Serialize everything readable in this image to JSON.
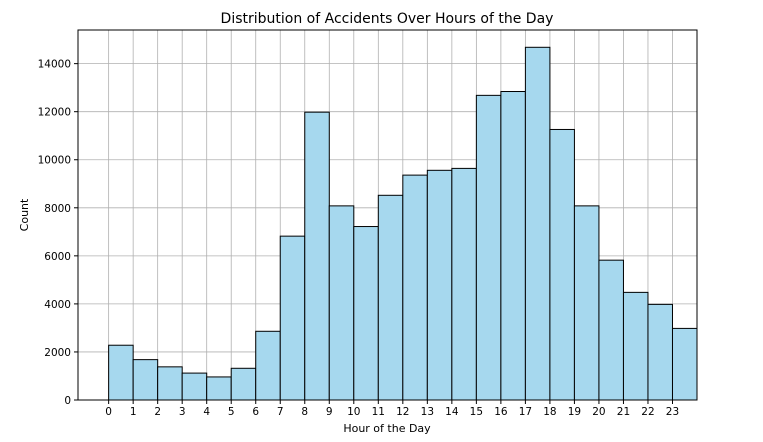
{
  "chart_data": {
    "type": "bar",
    "title": "Distribution of Accidents Over Hours of the Day",
    "xlabel": "Hour of the Day",
    "ylabel": "Count",
    "categories": [
      "0",
      "1",
      "2",
      "3",
      "4",
      "5",
      "6",
      "7",
      "8",
      "9",
      "10",
      "11",
      "12",
      "13",
      "14",
      "15",
      "16",
      "17",
      "18",
      "19",
      "20",
      "21",
      "22",
      "23"
    ],
    "x_tick_labels": [
      "0",
      "1",
      "2",
      "3",
      "4",
      "5",
      "6",
      "7",
      "8",
      "9",
      "10",
      "11",
      "12",
      "13",
      "14",
      "15",
      "16",
      "17",
      "18",
      "19",
      "20",
      "21",
      "22",
      "23"
    ],
    "values": [
      2280,
      1680,
      1380,
      1120,
      960,
      1320,
      2860,
      6820,
      11980,
      8080,
      7220,
      8520,
      9360,
      9560,
      9640,
      12680,
      12840,
      14680,
      11260,
      8080,
      5820,
      4480,
      3980,
      2980
    ],
    "ylim": [
      0,
      15400
    ],
    "y_ticks": [
      0,
      2000,
      4000,
      6000,
      8000,
      10000,
      12000,
      14000
    ],
    "y_tick_labels": [
      "0",
      "2000",
      "4000",
      "6000",
      "8000",
      "10000",
      "12000",
      "14000"
    ],
    "grid": true,
    "bar_color": "#a6d8ee",
    "edge_color": "#000000"
  }
}
